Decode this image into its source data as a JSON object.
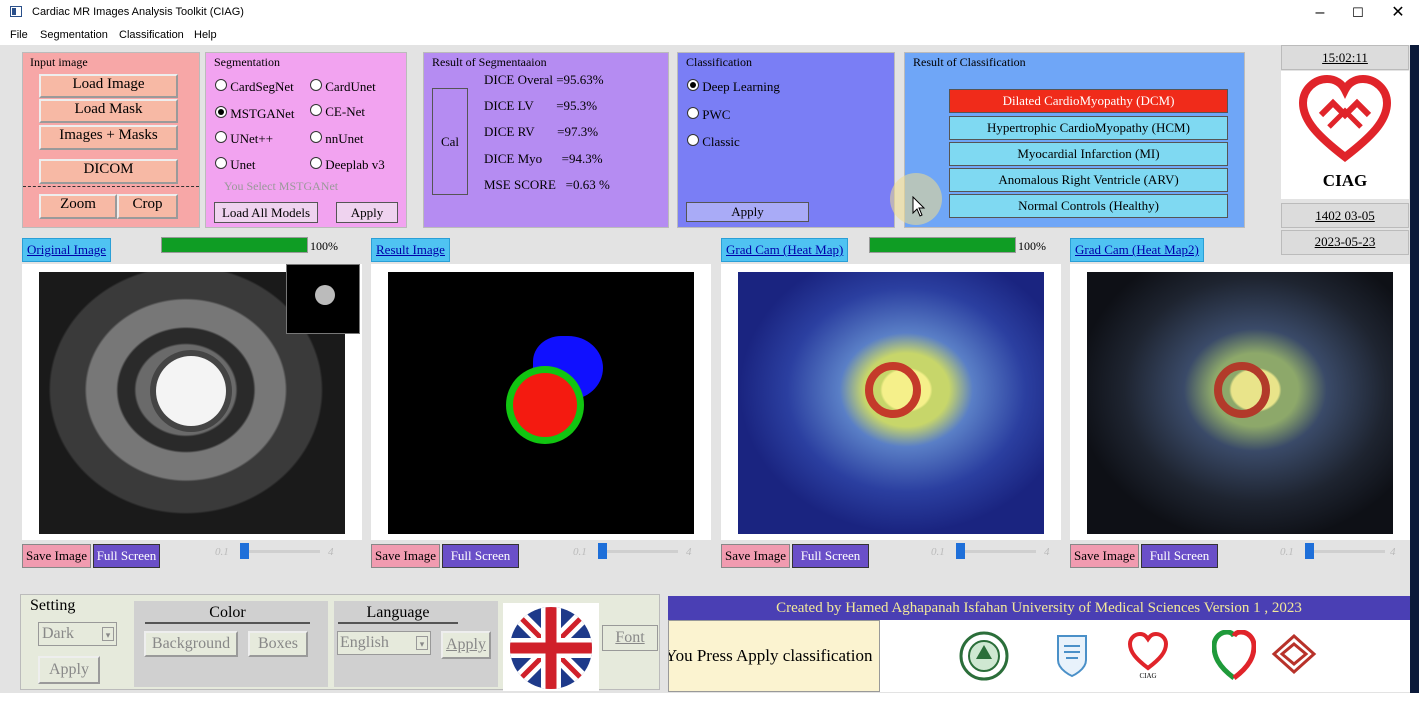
{
  "window": {
    "title": "Cardiac MR Images Analysis Toolkit  (CIAG)",
    "minimize": "–",
    "maximize": "☐",
    "close": "✕"
  },
  "menu": [
    "File",
    "Segmentation",
    "Classification",
    "Help"
  ],
  "input_panel": {
    "title": "Input  image",
    "load_image": "Load Image",
    "load_mask": "Load Mask",
    "images_masks": "Images + Masks",
    "dicom": "DICOM",
    "zoom": "Zoom",
    "crop": "Crop"
  },
  "segmentation": {
    "title": "Segmentation",
    "options": [
      "CardSegNet",
      "CardUnet",
      "MSTGANet",
      "CE-Net",
      "UNet++",
      "nnUnet",
      "Unet",
      "Deeplab v3"
    ],
    "selected": "MSTGANet",
    "selected_text": "You Select MSTGANet",
    "load_all": "Load All  Models",
    "apply": "Apply"
  },
  "seg_result": {
    "title": "Result of Segmentaaion",
    "cal": "Cal",
    "rows": [
      {
        "label": "DICE Overal =95.63%"
      },
      {
        "label": "DICE LV       =95.3%"
      },
      {
        "label": "DICE RV       =97.3%"
      },
      {
        "label": "DICE Myo      =94.3%"
      },
      {
        "label": "MSE SCORE   =0.63 %"
      }
    ]
  },
  "classification": {
    "title": "Classification",
    "options": [
      "Deep Learning",
      "PWC",
      "Classic"
    ],
    "selected": "Deep Learning",
    "apply": "Apply"
  },
  "class_result": {
    "title": "Result of Classification",
    "items": [
      "Dilated CardioMyopathy (DCM)",
      "Hypertrophic CardioMyopathy (HCM)",
      "Myocardial Infarction (MI)",
      "Anomalous Right Ventricle (ARV)",
      "Normal Controls (Healthy)"
    ],
    "selected_index": 0
  },
  "side": {
    "time": "15:02:11",
    "logo_text": "CIAG",
    "date_persian": "1402 03-05",
    "date": "2023-05-23"
  },
  "image_panels": [
    {
      "tab": "Original Image",
      "progress": "100%",
      "progress_value": 1.0,
      "save": "Save Image",
      "full": "Full Screen",
      "slider_min": "0.1",
      "slider_max": "4"
    },
    {
      "tab": "Result Image",
      "save": "Save Image",
      "full": "Full Screen",
      "slider_min": "0.1",
      "slider_max": "4"
    },
    {
      "tab": "Grad Cam (Heat Map)",
      "progress": "100%",
      "progress_value": 1.0,
      "save": "Save Image",
      "full": "Full Screen",
      "slider_min": "0.1",
      "slider_max": "4"
    },
    {
      "tab": "Grad Cam (Heat Map2)",
      "save": "Save Image",
      "full": "Full Screen",
      "slider_min": "0.1",
      "slider_max": "4"
    }
  ],
  "settings": {
    "title": "Setting",
    "theme": "Dark",
    "apply": "Apply",
    "color_title": "Color",
    "background": "Background",
    "boxes": "Boxes",
    "language_title": "Language",
    "language": "English",
    "lang_apply": "Apply",
    "font": "Font"
  },
  "footer": {
    "credit": "Created by Hamed Aghapanah    Isfahan University of Medical Sciences   Version 1 , 2023",
    "status": "You Press Apply classification",
    "logo_caption": "CIAG"
  },
  "colors": {
    "input_panel": "#f7a7a7",
    "seg_panel": "#f2a3f0",
    "seg_result_panel": "#b58cf2",
    "class_panel": "#7a7ef5",
    "class_result_panel": "#6fa6f7",
    "selected_class": "#f02b1a"
  }
}
